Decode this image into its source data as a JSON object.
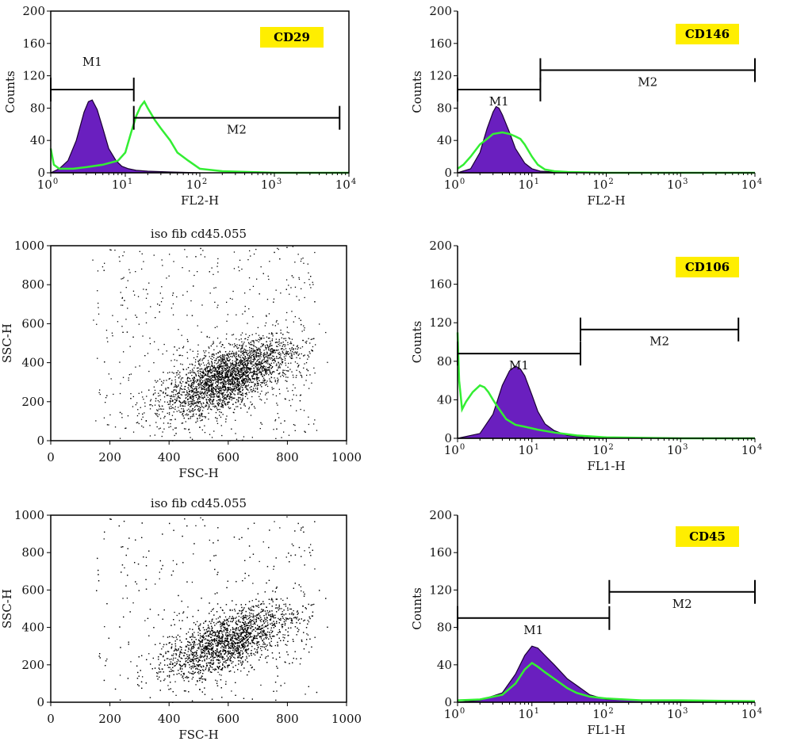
{
  "colors": {
    "filled": "#6a1fbf",
    "filled_outline": "#1a0033",
    "overlay": "#33ee33",
    "badge": "#ffee00",
    "axes": "#000000"
  },
  "chart_data": [
    {
      "id": "cd29",
      "type": "histogram",
      "badge": "CD29",
      "xlabel": "FL2-H",
      "ylabel": "Counts",
      "xscale": "log",
      "xlim": [
        1,
        10000
      ],
      "ylim": [
        0,
        200
      ],
      "xtick_labels": [
        "10",
        "10",
        "10",
        "10",
        "10"
      ],
      "xtick_exponents": [
        "0",
        "1",
        "2",
        "3",
        "4"
      ],
      "yticks": [
        "0",
        "40",
        "80",
        "120",
        "160",
        "200"
      ],
      "series": [
        {
          "role": "filled",
          "x": [
            1,
            1.3,
            1.7,
            2.2,
            2.8,
            3.2,
            3.6,
            4.2,
            5,
            6,
            7.5,
            9,
            11,
            14,
            20,
            40,
            100
          ],
          "y": [
            0,
            5,
            15,
            40,
            75,
            88,
            90,
            78,
            55,
            30,
            15,
            8,
            5,
            3,
            2,
            1,
            0
          ]
        },
        {
          "role": "overlay",
          "x": [
            1,
            1.1,
            1.3,
            2,
            3,
            5,
            8,
            10,
            12,
            14,
            16,
            18,
            20,
            25,
            30,
            40,
            50,
            70,
            100,
            200,
            1000,
            10000
          ],
          "y": [
            30,
            10,
            5,
            5,
            7,
            10,
            15,
            25,
            50,
            70,
            82,
            88,
            80,
            65,
            55,
            40,
            25,
            15,
            5,
            2,
            0,
            0
          ]
        }
      ],
      "markers": [
        {
          "label": "M1",
          "x": [
            1,
            13
          ],
          "y": 103
        },
        {
          "label": "M2",
          "x": [
            13,
            7500
          ],
          "y": 68
        }
      ]
    },
    {
      "id": "cd146",
      "type": "histogram",
      "badge": "CD146",
      "xlabel": "FL2-H",
      "ylabel": "Counts",
      "xscale": "log",
      "xlim": [
        1,
        10000
      ],
      "ylim": [
        0,
        200
      ],
      "xtick_labels": [
        "10",
        "10",
        "10",
        "10",
        "10"
      ],
      "xtick_exponents": [
        "0",
        "1",
        "2",
        "3",
        "4"
      ],
      "yticks": [
        "0",
        "40",
        "80",
        "120",
        "160",
        "200"
      ],
      "series": [
        {
          "role": "filled",
          "x": [
            1,
            1.5,
            2,
            2.5,
            3,
            3.3,
            3.6,
            4,
            5,
            6,
            8,
            10,
            13,
            20,
            40
          ],
          "y": [
            0,
            5,
            25,
            55,
            75,
            82,
            80,
            72,
            50,
            30,
            12,
            5,
            2,
            1,
            0
          ]
        },
        {
          "role": "overlay",
          "x": [
            1,
            1.2,
            1.5,
            2,
            2.5,
            3,
            4,
            5,
            6,
            7,
            8,
            10,
            12,
            15,
            20,
            30,
            100,
            10000
          ],
          "y": [
            5,
            10,
            20,
            35,
            42,
            48,
            50,
            48,
            45,
            42,
            35,
            20,
            10,
            4,
            2,
            1,
            0,
            0
          ]
        }
      ],
      "markers": [
        {
          "label": "M1",
          "x": [
            1,
            13
          ],
          "y": 103
        },
        {
          "label": "M2",
          "x": [
            13,
            10000
          ],
          "y": 127
        }
      ]
    },
    {
      "id": "scatter1",
      "type": "scatter",
      "title": "iso fib cd45.055",
      "xlabel": "FSC-H",
      "ylabel": "SSC-H",
      "xlim": [
        0,
        1000
      ],
      "ylim": [
        0,
        1000
      ],
      "xticks": [
        "0",
        "200",
        "400",
        "600",
        "800",
        "1000"
      ],
      "yticks": [
        "0",
        "200",
        "400",
        "600",
        "800",
        "1000"
      ],
      "n_points": 3500,
      "distribution": {
        "center": [
          600,
          330
        ],
        "spread": [
          110,
          100
        ],
        "correlation": 0.6,
        "x_min": 140,
        "saturation_y": 1000
      }
    },
    {
      "id": "cd106",
      "type": "histogram",
      "badge": "CD106",
      "xlabel": "FL1-H",
      "ylabel": "Counts",
      "xscale": "log",
      "xlim": [
        1,
        10000
      ],
      "ylim": [
        0,
        200
      ],
      "xtick_labels": [
        "10",
        "10",
        "10",
        "10",
        "10"
      ],
      "xtick_exponents": [
        "0",
        "1",
        "2",
        "3",
        "4"
      ],
      "yticks": [
        "0",
        "40",
        "80",
        "120",
        "160",
        "200"
      ],
      "series": [
        {
          "role": "filled",
          "x": [
            1,
            2,
            3,
            4,
            5,
            6,
            7,
            8,
            10,
            12,
            15,
            20,
            30,
            50,
            100
          ],
          "y": [
            0,
            5,
            25,
            55,
            70,
            75,
            72,
            65,
            45,
            28,
            15,
            8,
            3,
            1,
            0
          ]
        },
        {
          "role": "overlay",
          "x": [
            1,
            1.05,
            1.15,
            1.3,
            1.6,
            2,
            2.3,
            2.6,
            3,
            3.5,
            4.5,
            6,
            8,
            12,
            20,
            40,
            100,
            1000,
            10000
          ],
          "y": [
            110,
            60,
            30,
            38,
            48,
            55,
            53,
            48,
            40,
            32,
            20,
            14,
            12,
            9,
            6,
            3,
            1,
            0,
            0
          ]
        }
      ],
      "markers": [
        {
          "label": "M1",
          "x": [
            1,
            45
          ],
          "y": 88
        },
        {
          "label": "M2",
          "x": [
            45,
            6000
          ],
          "y": 113
        }
      ]
    },
    {
      "id": "scatter2",
      "type": "scatter",
      "title": "iso fib cd45.055",
      "xlabel": "FSC-H",
      "ylabel": "SSC-H",
      "xlim": [
        0,
        1000
      ],
      "ylim": [
        0,
        1000
      ],
      "xticks": [
        "0",
        "200",
        "400",
        "600",
        "800",
        "1000"
      ],
      "yticks": [
        "0",
        "200",
        "400",
        "600",
        "800",
        "1000"
      ],
      "n_points": 3500,
      "distribution": {
        "center": [
          600,
          330
        ],
        "spread": [
          110,
          100
        ],
        "correlation": 0.6,
        "x_min": 140,
        "saturation_y": 1000
      }
    },
    {
      "id": "cd45",
      "type": "histogram",
      "badge": "CD45",
      "xlabel": "FL1-H",
      "ylabel": "Counts",
      "xscale": "log",
      "xlim": [
        1,
        10000
      ],
      "ylim": [
        0,
        200
      ],
      "xtick_labels": [
        "10",
        "10",
        "10",
        "10",
        "10"
      ],
      "xtick_exponents": [
        "0",
        "1",
        "2",
        "3",
        "4"
      ],
      "yticks": [
        "0",
        "40",
        "80",
        "120",
        "160",
        "200"
      ],
      "series": [
        {
          "role": "filled",
          "x": [
            1,
            2,
            4,
            6,
            8,
            10,
            12,
            15,
            20,
            30,
            40,
            60,
            100,
            300,
            1000,
            10000
          ],
          "y": [
            0,
            2,
            10,
            30,
            50,
            60,
            58,
            50,
            40,
            25,
            18,
            8,
            3,
            2,
            1,
            0
          ]
        },
        {
          "role": "overlay",
          "x": [
            1,
            2,
            4,
            6,
            8,
            10,
            12,
            15,
            20,
            30,
            40,
            60,
            100,
            300,
            1000,
            10000
          ],
          "y": [
            2,
            3,
            8,
            20,
            35,
            42,
            38,
            32,
            25,
            15,
            10,
            6,
            4,
            2,
            2,
            1
          ]
        }
      ],
      "markers": [
        {
          "label": "M1",
          "x": [
            1,
            110
          ],
          "y": 90
        },
        {
          "label": "M2",
          "x": [
            110,
            10000
          ],
          "y": 118
        }
      ]
    }
  ]
}
